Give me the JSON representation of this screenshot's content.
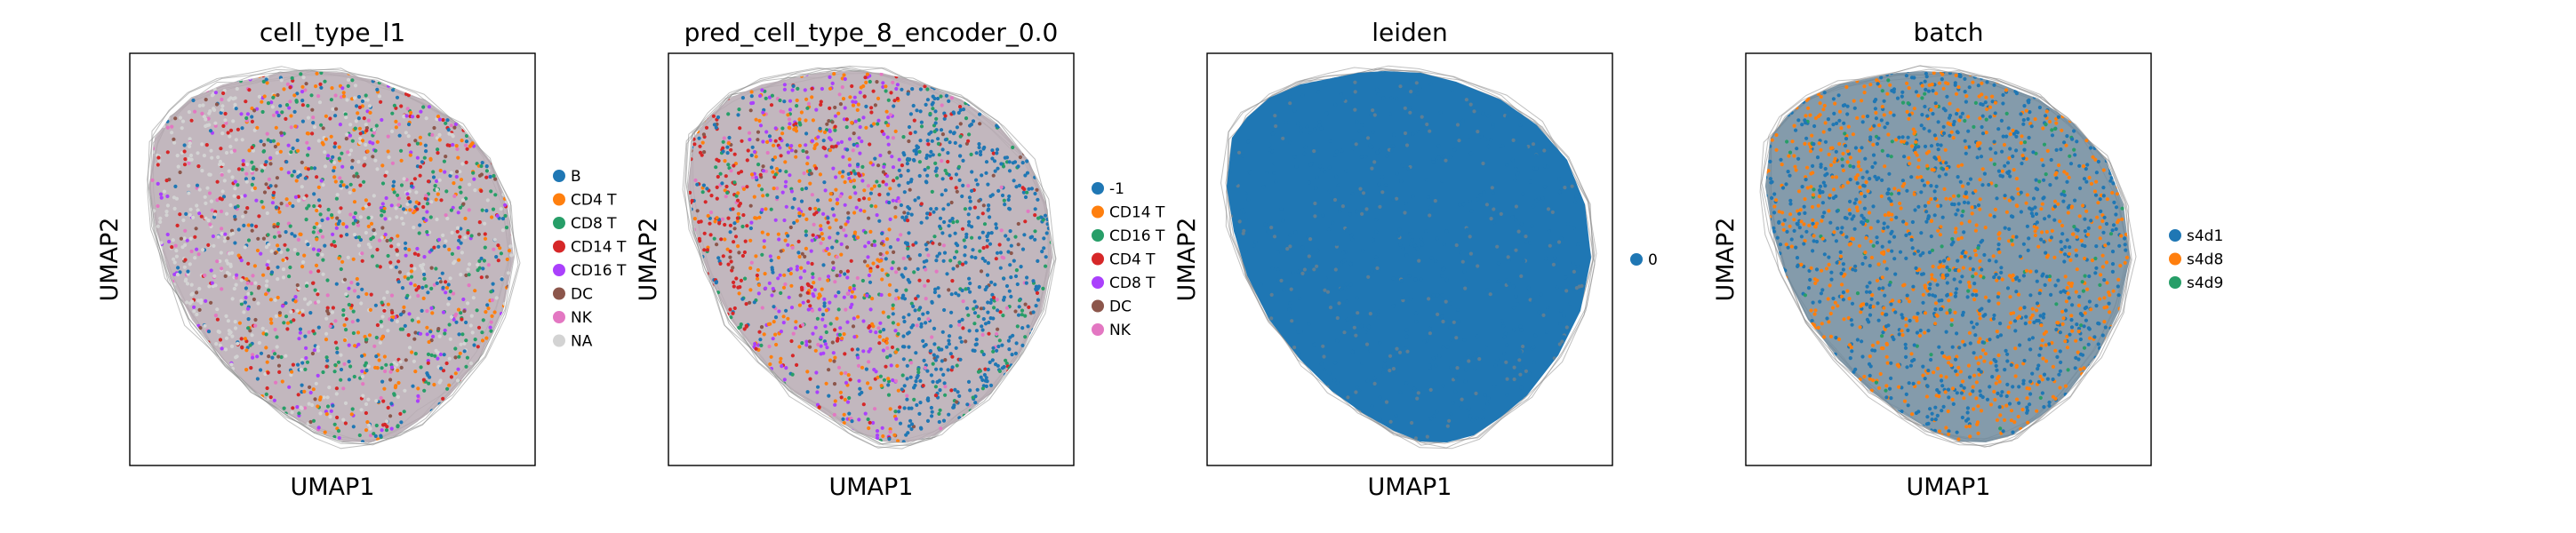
{
  "chart_data": [
    {
      "type": "scatter",
      "title": "cell_type_l1",
      "xlabel": "UMAP1",
      "ylabel": "UMAP2",
      "grid": false,
      "legend_placement": "right",
      "series": [
        {
          "name": "B",
          "color": "#1f77b4"
        },
        {
          "name": "CD4 T",
          "color": "#ff7f0e"
        },
        {
          "name": "CD8 T",
          "color": "#279e68"
        },
        {
          "name": "CD14 T",
          "color": "#d62728"
        },
        {
          "name": "CD16 T",
          "color": "#aa40fc"
        },
        {
          "name": "DC",
          "color": "#8c564b"
        },
        {
          "name": "NK",
          "color": "#e377c2"
        },
        {
          "name": "NA",
          "color": "#d3d3d3"
        }
      ]
    },
    {
      "type": "scatter",
      "title": "pred_cell_type_8_encoder_0.0",
      "xlabel": "UMAP1",
      "ylabel": "UMAP2",
      "grid": false,
      "legend_placement": "right",
      "series": [
        {
          "name": "-1",
          "color": "#1f77b4"
        },
        {
          "name": "CD14 T",
          "color": "#ff7f0e"
        },
        {
          "name": "CD16 T",
          "color": "#279e68"
        },
        {
          "name": "CD4 T",
          "color": "#d62728"
        },
        {
          "name": "CD8 T",
          "color": "#aa40fc"
        },
        {
          "name": "DC",
          "color": "#8c564b"
        },
        {
          "name": "NK",
          "color": "#e377c2"
        }
      ]
    },
    {
      "type": "scatter",
      "title": "leiden",
      "xlabel": "UMAP1",
      "ylabel": "UMAP2",
      "grid": false,
      "legend_placement": "right",
      "series": [
        {
          "name": "0",
          "color": "#1f77b4"
        }
      ]
    },
    {
      "type": "scatter",
      "title": "batch",
      "xlabel": "UMAP1",
      "ylabel": "UMAP2",
      "grid": false,
      "legend_placement": "right",
      "series": [
        {
          "name": "s4d1",
          "color": "#1f77b4"
        },
        {
          "name": "s4d8",
          "color": "#ff7f0e"
        },
        {
          "name": "s4d9",
          "color": "#279e68"
        }
      ]
    }
  ]
}
